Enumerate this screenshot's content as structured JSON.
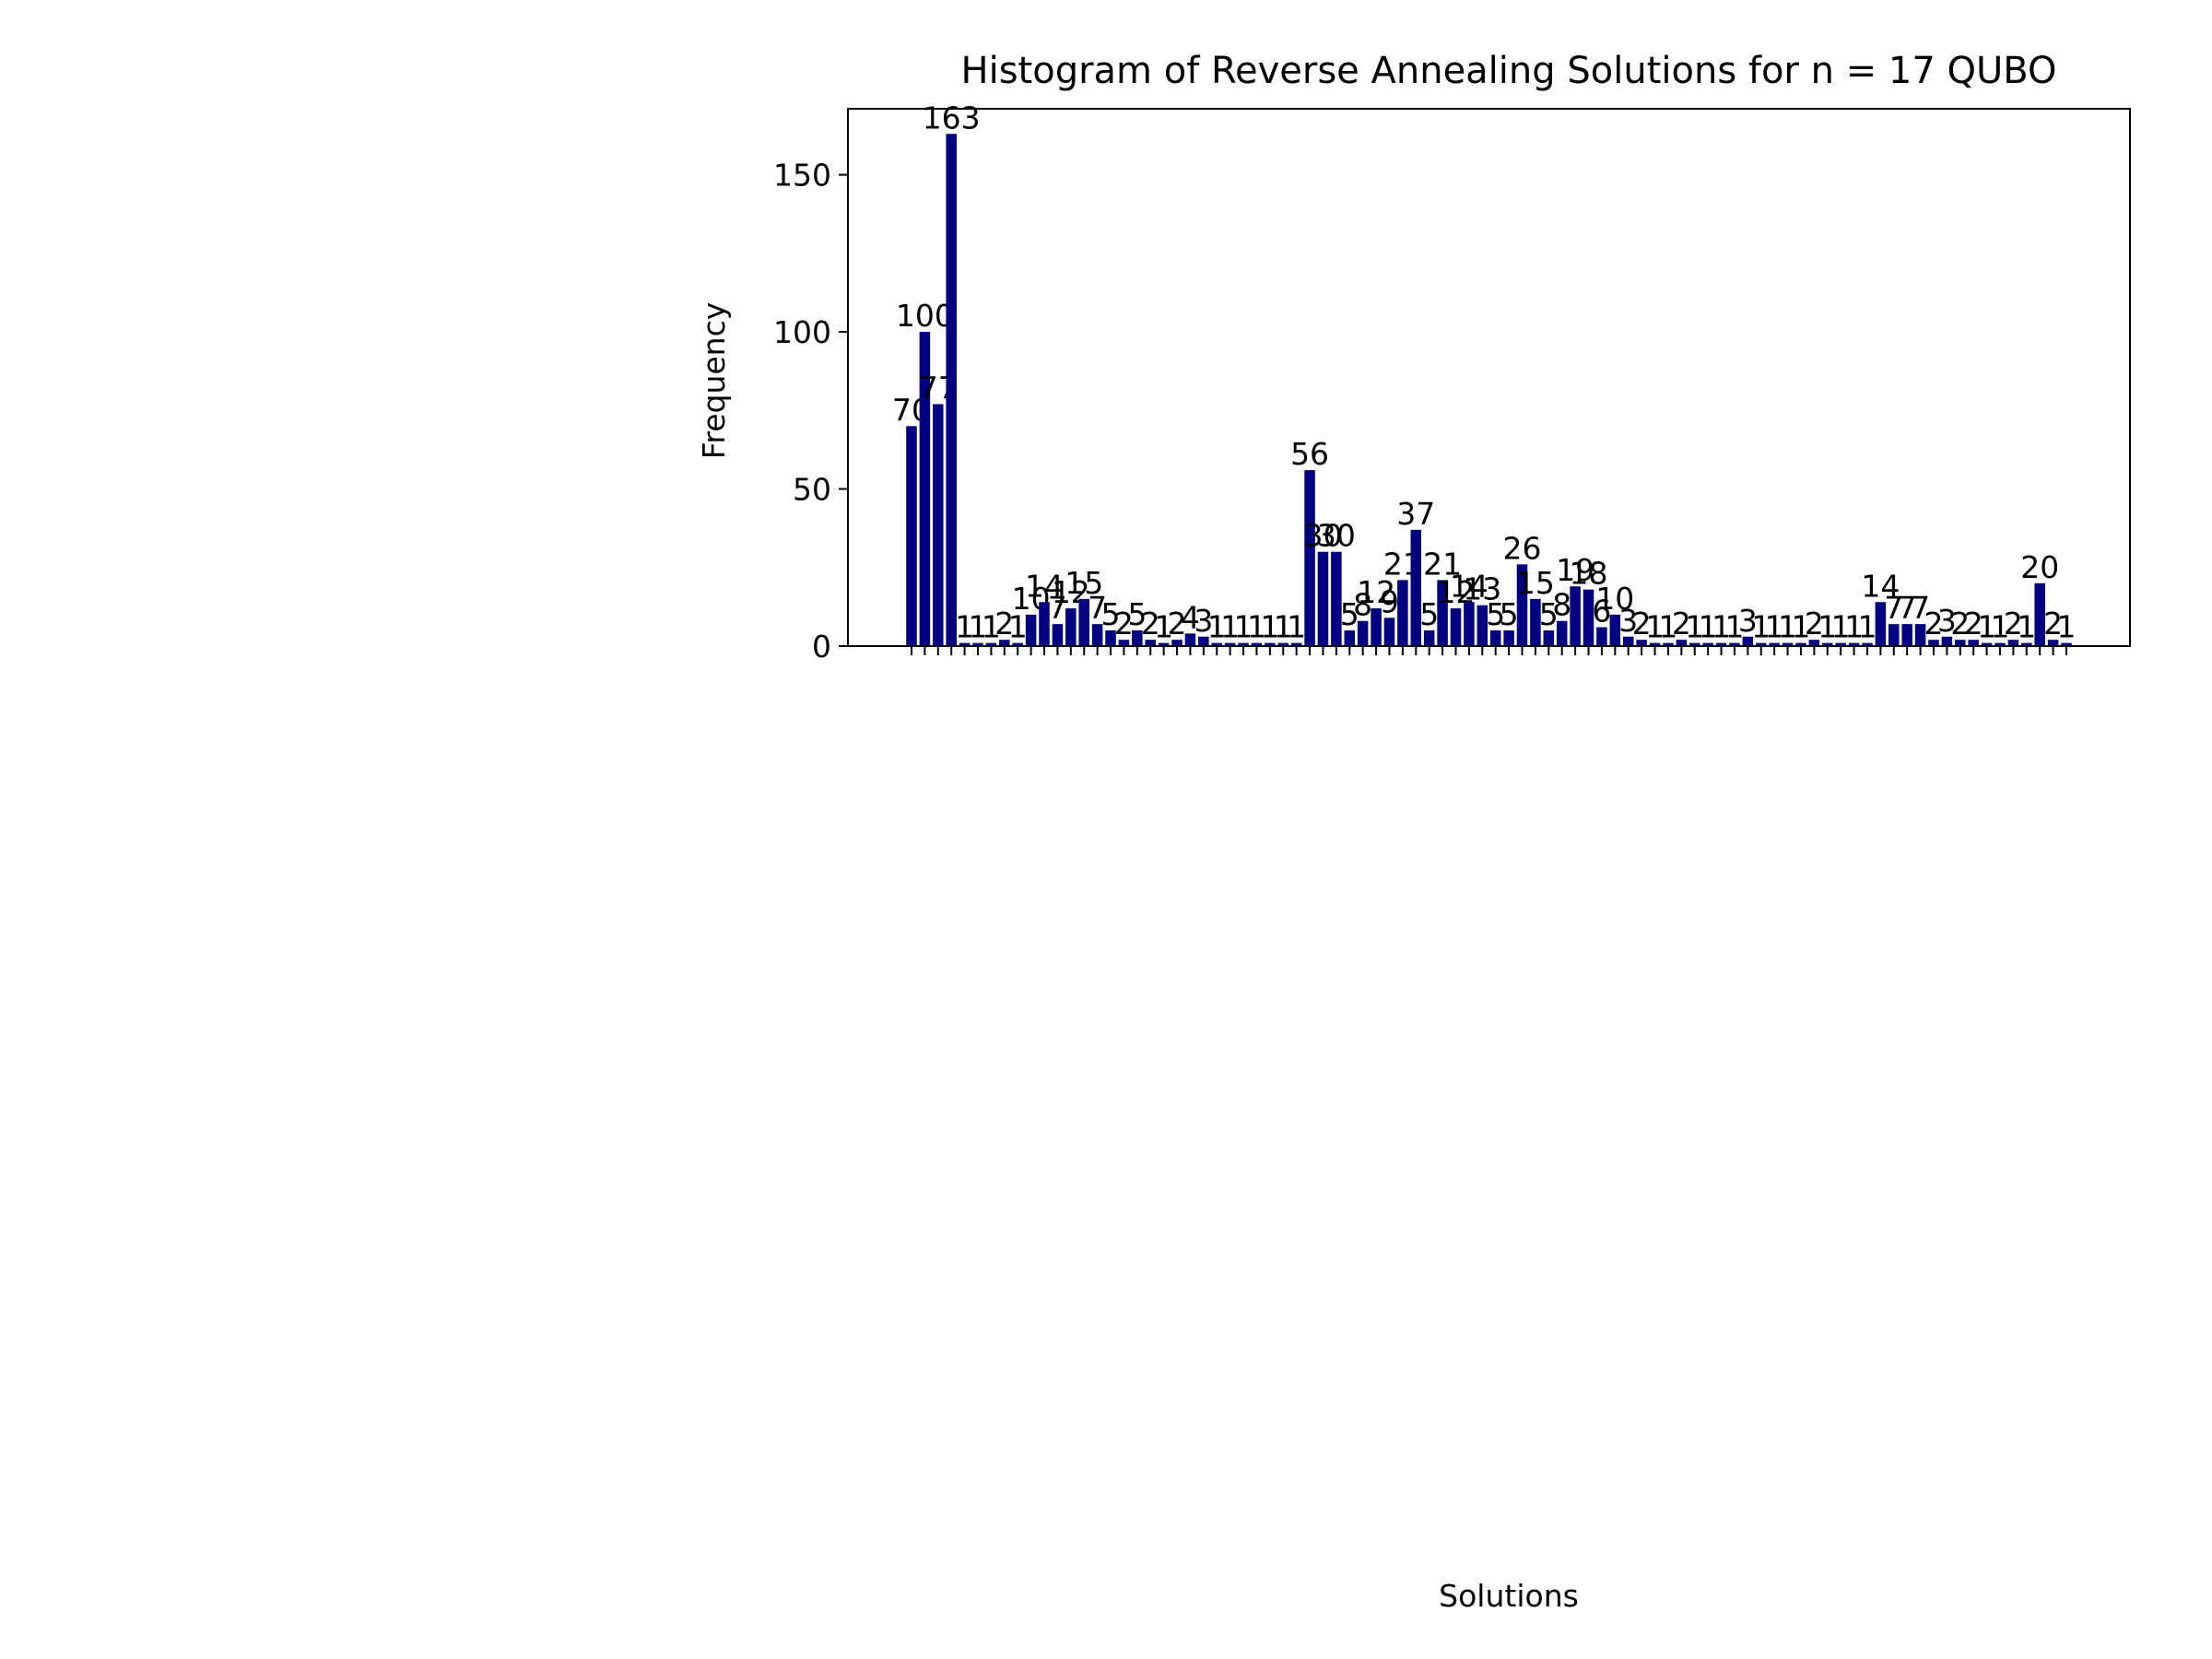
{
  "chart_data": {
    "type": "bar",
    "title": "Histogram of Reverse Annealing Solutions for n = 17 QUBO",
    "x_label": "Solutions",
    "y_label": "Frequency",
    "categories": [
      null,
      null,
      null,
      null,
      null,
      null,
      null,
      null,
      null,
      null,
      null,
      null,
      null,
      null,
      null,
      null,
      null,
      null,
      null,
      null,
      null,
      null,
      null,
      null,
      null,
      null,
      null,
      null,
      null,
      null,
      null,
      null,
      null,
      null,
      null,
      null,
      null,
      null,
      null,
      null,
      null,
      null,
      null,
      null,
      null,
      null,
      null,
      null,
      null,
      null,
      null,
      null,
      null,
      null,
      null,
      null,
      null,
      null,
      null,
      null,
      null,
      null,
      null,
      null,
      null,
      null,
      null,
      null,
      null,
      null,
      null,
      null,
      null,
      null,
      null,
      null,
      null,
      null,
      null,
      null,
      null,
      null,
      null,
      null,
      null,
      null,
      null,
      null
    ],
    "values": [
      70,
      100,
      77,
      163,
      1,
      1,
      1,
      2,
      1,
      10,
      14,
      7,
      12,
      15,
      7,
      5,
      2,
      5,
      2,
      1,
      2,
      4,
      3,
      1,
      1,
      1,
      1,
      1,
      1,
      1,
      56,
      30,
      30,
      5,
      8,
      12,
      9,
      21,
      37,
      5,
      21,
      12,
      14,
      13,
      5,
      5,
      26,
      15,
      5,
      8,
      19,
      18,
      6,
      10,
      3,
      2,
      1,
      1,
      2,
      1,
      1,
      1,
      1,
      3,
      1,
      1,
      1,
      1,
      2,
      1,
      1,
      1,
      1,
      14,
      7,
      7,
      7,
      2,
      3,
      2,
      2,
      1,
      1,
      2,
      1,
      20,
      2,
      1
    ],
    "color": "#000080",
    "ylim": [
      0,
      171
    ],
    "yticks": [
      0,
      50,
      100,
      150
    ]
  }
}
